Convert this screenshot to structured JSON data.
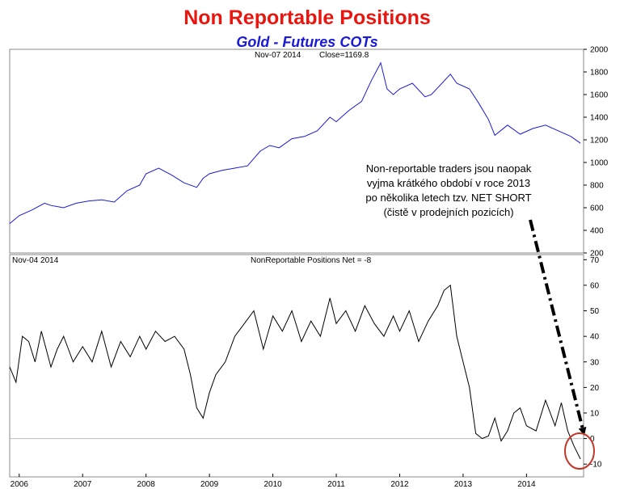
{
  "title": "Non Reportable Positions",
  "subtitle": "Gold - Futures COTs",
  "annotation_lines": [
    "Non-reportable traders jsou naopak",
    "vyjma krátkého období v roce 2013",
    "po několika letech tzv. NET SHORT",
    "(čistě v prodejních pozicích)"
  ],
  "colors": {
    "title": "#e8160e",
    "subtitle": "#1a1ad6",
    "price_line": "#1a1ad6",
    "net_line": "#000000",
    "circle": "#c0392b"
  },
  "chart_data": [
    {
      "type": "line",
      "header_left": "Nov-07  2014",
      "header_right": "Close=1169.8",
      "ylim": [
        200,
        2000
      ],
      "yticks": [
        "200",
        "400",
        "600",
        "800",
        "1000",
        "1200",
        "1400",
        "1600",
        "1800",
        "2000"
      ],
      "x_range": [
        2005.85,
        2014.9
      ],
      "series": [
        {
          "x": [
            2005.85,
            2006.0,
            2006.2,
            2006.4,
            2006.5,
            2006.7,
            2006.9,
            2007.1,
            2007.3,
            2007.5,
            2007.7,
            2007.9,
            2008.0,
            2008.2,
            2008.4,
            2008.6,
            2008.8,
            2008.9,
            2009.0,
            2009.2,
            2009.4,
            2009.6,
            2009.8,
            2009.95,
            2010.1,
            2010.3,
            2010.5,
            2010.7,
            2010.9,
            2011.0,
            2011.2,
            2011.4,
            2011.55,
            2011.7,
            2011.8,
            2011.9,
            2012.0,
            2012.2,
            2012.4,
            2012.5,
            2012.7,
            2012.8,
            2012.9,
            2013.1,
            2013.25,
            2013.4,
            2013.5,
            2013.7,
            2013.9,
            2014.1,
            2014.3,
            2014.5,
            2014.7,
            2014.85
          ],
          "values": [
            460,
            530,
            580,
            640,
            620,
            600,
            640,
            660,
            670,
            650,
            750,
            800,
            900,
            950,
            890,
            820,
            780,
            860,
            900,
            930,
            950,
            970,
            1100,
            1150,
            1130,
            1210,
            1230,
            1280,
            1400,
            1360,
            1460,
            1540,
            1720,
            1880,
            1650,
            1600,
            1650,
            1700,
            1580,
            1600,
            1720,
            1780,
            1700,
            1650,
            1520,
            1380,
            1240,
            1330,
            1250,
            1300,
            1330,
            1280,
            1230,
            1170
          ]
        }
      ]
    },
    {
      "type": "line",
      "header_left": "Nov-04  2014",
      "header_center": "NonReportable Positions Net = -8",
      "ylim": [
        -15,
        72
      ],
      "yticks": [
        "-10",
        "0",
        "10",
        "20",
        "30",
        "40",
        "50",
        "60",
        "70"
      ],
      "xticks": [
        "2006",
        "2007",
        "2008",
        "2009",
        "2010",
        "2011",
        "2012",
        "2013",
        "2014"
      ],
      "x_range": [
        2005.85,
        2014.9
      ],
      "series": [
        {
          "x": [
            2005.85,
            2005.95,
            2006.05,
            2006.15,
            2006.25,
            2006.35,
            2006.5,
            2006.6,
            2006.7,
            2006.85,
            2007.0,
            2007.15,
            2007.3,
            2007.45,
            2007.6,
            2007.75,
            2007.9,
            2008.0,
            2008.15,
            2008.3,
            2008.45,
            2008.6,
            2008.7,
            2008.8,
            2008.9,
            2009.0,
            2009.1,
            2009.25,
            2009.4,
            2009.55,
            2009.7,
            2009.85,
            2010.0,
            2010.15,
            2010.3,
            2010.45,
            2010.6,
            2010.75,
            2010.9,
            2011.0,
            2011.15,
            2011.3,
            2011.45,
            2011.6,
            2011.75,
            2011.9,
            2012.0,
            2012.15,
            2012.3,
            2012.45,
            2012.6,
            2012.7,
            2012.8,
            2012.9,
            2013.0,
            2013.1,
            2013.2,
            2013.3,
            2013.4,
            2013.5,
            2013.6,
            2013.7,
            2013.8,
            2013.9,
            2014.0,
            2014.15,
            2014.3,
            2014.45,
            2014.55,
            2014.65,
            2014.75,
            2014.85
          ],
          "values": [
            28,
            22,
            40,
            38,
            30,
            42,
            28,
            35,
            40,
            30,
            36,
            30,
            42,
            28,
            38,
            32,
            40,
            35,
            42,
            38,
            40,
            35,
            25,
            12,
            8,
            18,
            25,
            30,
            40,
            45,
            50,
            35,
            48,
            42,
            50,
            38,
            46,
            40,
            55,
            45,
            50,
            42,
            52,
            45,
            40,
            48,
            42,
            50,
            38,
            46,
            52,
            58,
            60,
            40,
            30,
            20,
            2,
            0,
            1,
            8,
            -1,
            3,
            10,
            12,
            5,
            3,
            15,
            5,
            14,
            3,
            -3,
            -8
          ]
        }
      ]
    }
  ]
}
